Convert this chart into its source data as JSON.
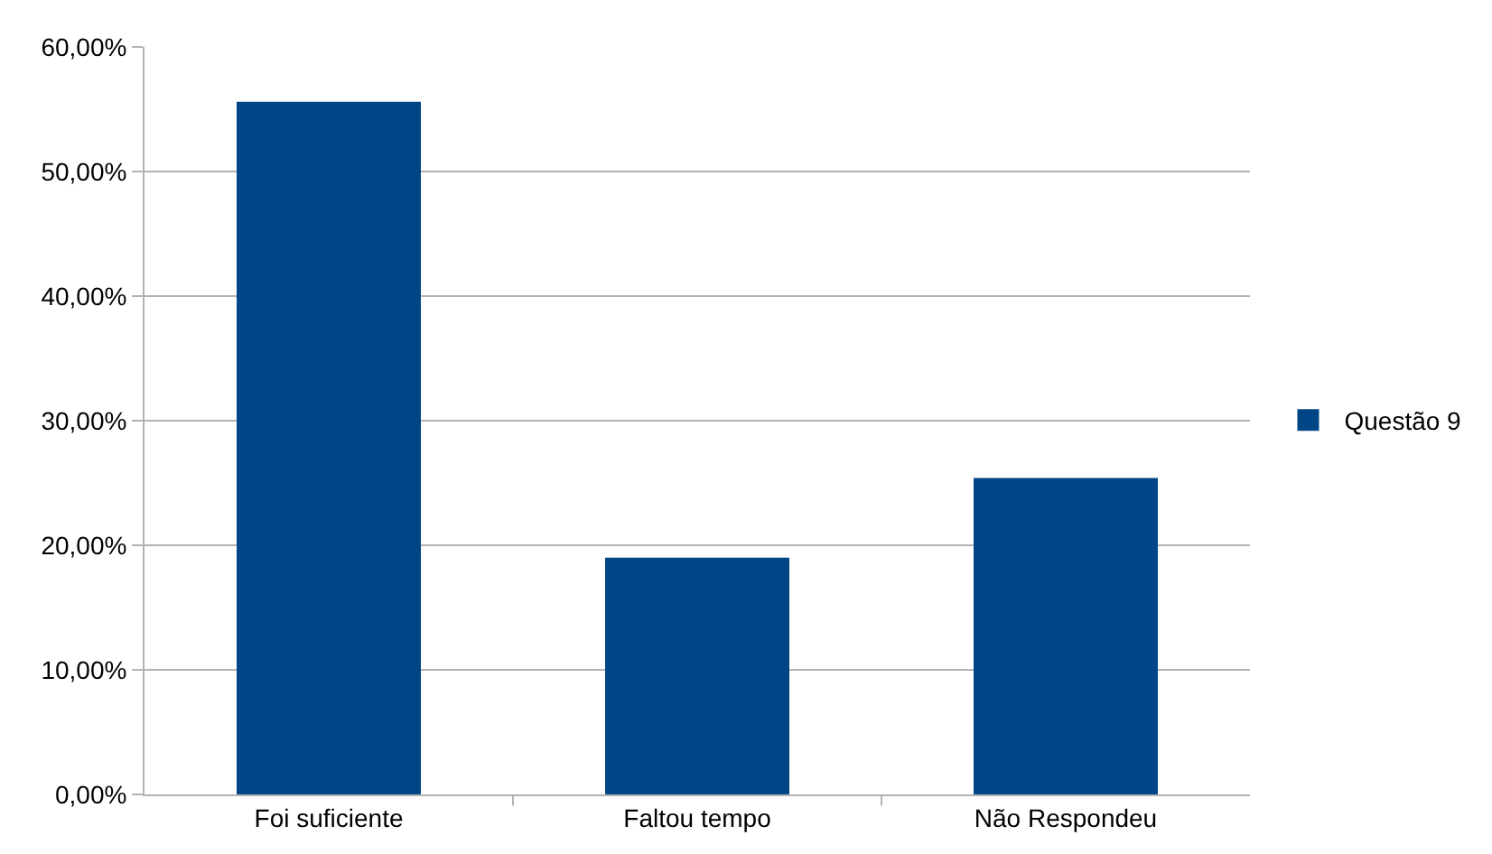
{
  "chart_data": {
    "type": "bar",
    "categories": [
      "Foi suficiente",
      "Faltou tempo",
      "Não Respondeu"
    ],
    "series": [
      {
        "name": "Questão 9",
        "color": "#004586",
        "values": [
          55.6,
          19.0,
          25.4
        ]
      }
    ],
    "ylim": [
      0,
      60
    ],
    "yticks": [
      {
        "value": 0,
        "label": "0,00%"
      },
      {
        "value": 10,
        "label": "10,00%"
      },
      {
        "value": 20,
        "label": "20,00%"
      },
      {
        "value": 30,
        "label": "30,00%"
      },
      {
        "value": 40,
        "label": "40,00%"
      },
      {
        "value": 50,
        "label": "50,00%"
      },
      {
        "value": 60,
        "label": "60,00%"
      }
    ],
    "grid": "y",
    "legend": "right"
  }
}
